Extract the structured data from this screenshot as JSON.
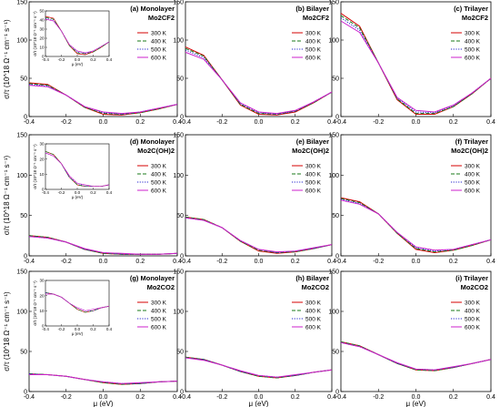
{
  "legend_labels": [
    "300 K",
    "400 K",
    "500 K",
    "600 K"
  ],
  "colors": {
    "300 K": "#d40000",
    "400 K": "#1a7a1a",
    "500 K": "#2222cc",
    "600 K": "#cc22cc"
  },
  "chart_data": [
    {
      "id": "a",
      "type": "line",
      "title_line1": "(a) Monolayer",
      "title_line2": "Mo2CF2",
      "xlim": [
        -0.4,
        0.4
      ],
      "ylim": [
        0,
        150
      ],
      "xticks": [
        "-0.4",
        "-0.2",
        "0.0",
        "0.2",
        "0.4"
      ],
      "yticks": [
        "0",
        "50",
        "100",
        "150"
      ],
      "ylabel": "σ/τ (10^18 Ω⁻¹ cm⁻¹ s⁻¹)",
      "xlabel": "",
      "x": [
        -0.4,
        -0.3,
        -0.2,
        -0.1,
        0.0,
        0.1,
        0.2,
        0.3,
        0.4
      ],
      "series": [
        {
          "name": "300 K",
          "values": [
            44,
            42,
            28,
            12,
            3,
            2,
            5,
            10,
            16
          ]
        },
        {
          "name": "400 K",
          "values": [
            43,
            41,
            28,
            12,
            4,
            3,
            5,
            10,
            16
          ]
        },
        {
          "name": "500 K",
          "values": [
            42,
            40,
            28,
            13,
            5,
            3,
            6,
            11,
            16
          ]
        },
        {
          "name": "600 K",
          "values": [
            41,
            39,
            28,
            13,
            6,
            4,
            6,
            11,
            16
          ]
        }
      ],
      "inset": {
        "xlim": [
          -0.4,
          0.4
        ],
        "ylim": [
          0,
          50
        ],
        "xticks": [
          "-0.4",
          "-0.2",
          "0.0",
          "0.2",
          "0.4"
        ],
        "yticks": [
          "0",
          "10",
          "20",
          "30",
          "40",
          "50"
        ],
        "xlabel": "μ (eV)",
        "ylabel": "σ/τ (10^18 Ω⁻¹ cm⁻¹ s⁻¹)"
      }
    },
    {
      "id": "b",
      "type": "line",
      "title_line1": "(b) Bilayer",
      "title_line2": "Mo2CF2",
      "xlim": [
        -0.4,
        0.4
      ],
      "ylim": [
        0,
        150
      ],
      "xticks": [
        "-0.4",
        "-0.2",
        "0.0",
        "0.2",
        "0.4"
      ],
      "yticks": [
        "0",
        "50",
        "100",
        "150"
      ],
      "ylabel": "",
      "xlabel": "",
      "x": [
        -0.4,
        -0.3,
        -0.2,
        -0.1,
        0.0,
        0.1,
        0.2,
        0.3,
        0.4
      ],
      "series": [
        {
          "name": "300 K",
          "values": [
            91,
            80,
            48,
            15,
            3,
            2,
            6,
            18,
            32
          ]
        },
        {
          "name": "400 K",
          "values": [
            89,
            79,
            48,
            16,
            4,
            3,
            7,
            18,
            32
          ]
        },
        {
          "name": "500 K",
          "values": [
            87,
            77,
            48,
            17,
            5,
            3,
            7,
            19,
            32
          ]
        },
        {
          "name": "600 K",
          "values": [
            84,
            75,
            48,
            18,
            6,
            4,
            8,
            19,
            32
          ]
        }
      ]
    },
    {
      "id": "c",
      "type": "line",
      "title_line1": "(c) Trilayer",
      "title_line2": "Mo2CF2",
      "xlim": [
        -0.4,
        0.4
      ],
      "ylim": [
        0,
        150
      ],
      "xticks": [
        "-0.4",
        "-0.2",
        "0.0",
        "0.2",
        "0.4"
      ],
      "yticks": [
        "0",
        "50",
        "100",
        "150"
      ],
      "ylabel": "",
      "xlabel": "",
      "x": [
        -0.4,
        -0.3,
        -0.2,
        -0.1,
        0.0,
        0.1,
        0.2,
        0.3,
        0.4
      ],
      "series": [
        {
          "name": "300 K",
          "values": [
            135,
            118,
            70,
            22,
            3,
            3,
            13,
            30,
            50
          ]
        },
        {
          "name": "400 K",
          "values": [
            132,
            116,
            70,
            23,
            4,
            4,
            13,
            30,
            50
          ]
        },
        {
          "name": "500 K",
          "values": [
            129,
            113,
            70,
            24,
            6,
            5,
            14,
            31,
            50
          ]
        },
        {
          "name": "600 K",
          "values": [
            125,
            110,
            70,
            25,
            8,
            6,
            15,
            31,
            50
          ]
        }
      ]
    },
    {
      "id": "d",
      "type": "line",
      "title_line1": "(d) Monolayer",
      "title_line2": "Mo2C(OH)2",
      "xlim": [
        -0.4,
        0.4
      ],
      "ylim": [
        0,
        150
      ],
      "xticks": [
        "-0.4",
        "-0.2",
        "0.0",
        "0.2",
        "0.4"
      ],
      "yticks": [
        "0",
        "50",
        "100",
        "150"
      ],
      "ylabel": "σ/τ (10^18 Ω⁻¹ cm⁻¹ s⁻¹)",
      "xlabel": "",
      "x": [
        -0.4,
        -0.3,
        -0.2,
        -0.1,
        0.0,
        0.1,
        0.2,
        0.3,
        0.4
      ],
      "series": [
        {
          "name": "300 K",
          "values": [
            25,
            23,
            17,
            8,
            3,
            2,
            2,
            2,
            3
          ]
        },
        {
          "name": "400 K",
          "values": [
            25,
            23,
            17,
            8,
            3,
            2,
            2,
            2,
            3
          ]
        },
        {
          "name": "500 K",
          "values": [
            24,
            22,
            17,
            8,
            4,
            2,
            2,
            2,
            3
          ]
        },
        {
          "name": "600 K",
          "values": [
            24,
            22,
            17,
            9,
            4,
            3,
            2,
            2,
            3
          ]
        }
      ],
      "inset": {
        "xlim": [
          -0.4,
          0.4
        ],
        "ylim": [
          0,
          30
        ],
        "xticks": [
          "-0.4",
          "-0.2",
          "0.0",
          "0.2",
          "0.4"
        ],
        "yticks": [
          "0",
          "10",
          "20",
          "30"
        ],
        "xlabel": "μ (eV)",
        "ylabel": "σ/τ (10^18 Ω⁻¹ cm⁻¹ s⁻¹)"
      }
    },
    {
      "id": "e",
      "type": "line",
      "title_line1": "(e) Bilayer",
      "title_line2": "Mo2C(OH)2",
      "xlim": [
        -0.4,
        0.4
      ],
      "ylim": [
        0,
        150
      ],
      "xticks": [
        "-0.4",
        "-0.2",
        "0.0",
        "0.2",
        "0.4"
      ],
      "yticks": [
        "0",
        "50",
        "100",
        "150"
      ],
      "ylabel": "",
      "xlabel": "",
      "x": [
        -0.4,
        -0.3,
        -0.2,
        -0.1,
        0.0,
        0.1,
        0.2,
        0.3,
        0.4
      ],
      "series": [
        {
          "name": "300 K",
          "values": [
            48,
            45,
            35,
            18,
            6,
            3,
            5,
            9,
            14
          ]
        },
        {
          "name": "400 K",
          "values": [
            48,
            45,
            35,
            18,
            7,
            4,
            5,
            9,
            14
          ]
        },
        {
          "name": "500 K",
          "values": [
            47,
            44,
            35,
            19,
            8,
            4,
            6,
            9,
            14
          ]
        },
        {
          "name": "600 K",
          "values": [
            47,
            44,
            35,
            19,
            8,
            5,
            6,
            10,
            14
          ]
        }
      ]
    },
    {
      "id": "f",
      "type": "line",
      "title_line1": "(f) Trilayer",
      "title_line2": "Mo2C(OH)2",
      "xlim": [
        -0.4,
        0.4
      ],
      "ylim": [
        0,
        150
      ],
      "xticks": [
        "-0.4",
        "-0.2",
        "0.0",
        "0.2",
        "0.4"
      ],
      "yticks": [
        "0",
        "50",
        "100",
        "150"
      ],
      "ylabel": "",
      "xlabel": "",
      "x": [
        -0.4,
        -0.3,
        -0.2,
        -0.1,
        0.0,
        0.1,
        0.2,
        0.3,
        0.4
      ],
      "series": [
        {
          "name": "300 K",
          "values": [
            72,
            67,
            52,
            28,
            8,
            4,
            7,
            13,
            20
          ]
        },
        {
          "name": "400 K",
          "values": [
            71,
            66,
            52,
            28,
            9,
            5,
            7,
            13,
            20
          ]
        },
        {
          "name": "500 K",
          "values": [
            70,
            65,
            52,
            29,
            10,
            6,
            8,
            14,
            20
          ]
        },
        {
          "name": "600 K",
          "values": [
            69,
            64,
            52,
            29,
            11,
            7,
            8,
            14,
            20
          ]
        }
      ]
    },
    {
      "id": "g",
      "type": "line",
      "title_line1": "(g) Monolayer",
      "title_line2": "Mo2CO2",
      "xlim": [
        -0.4,
        0.4
      ],
      "ylim": [
        0,
        150
      ],
      "xticks": [
        "-0.4",
        "-0.2",
        "0.0",
        "0.2",
        "0.4"
      ],
      "yticks": [
        "0",
        "50",
        "100",
        "150"
      ],
      "ylabel": "σ/τ (10^18 Ω⁻¹ cm⁻¹ s⁻¹)",
      "xlabel": "μ (eV)",
      "x": [
        -0.4,
        -0.3,
        -0.2,
        -0.1,
        0.0,
        0.1,
        0.2,
        0.3,
        0.4
      ],
      "series": [
        {
          "name": "300 K",
          "values": [
            22,
            21,
            19,
            15,
            11,
            9,
            10,
            12,
            13
          ]
        },
        {
          "name": "400 K",
          "values": [
            22,
            21,
            19,
            15,
            11,
            9,
            10,
            12,
            13
          ]
        },
        {
          "name": "500 K",
          "values": [
            22,
            21,
            19,
            15,
            12,
            10,
            10,
            12,
            13
          ]
        },
        {
          "name": "600 K",
          "values": [
            21,
            21,
            19,
            15,
            12,
            10,
            11,
            12,
            13
          ]
        }
      ],
      "inset": {
        "xlim": [
          -0.4,
          0.4
        ],
        "ylim": [
          0,
          30
        ],
        "xticks": [
          "-0.4",
          "-0.2",
          "0.0",
          "0.2",
          "0.4"
        ],
        "yticks": [
          "0",
          "10",
          "20",
          "30"
        ],
        "xlabel": "μ (eV)",
        "ylabel": "σ/τ (10^18 Ω⁻¹ cm⁻¹ s⁻¹)"
      }
    },
    {
      "id": "h",
      "type": "line",
      "title_line1": "(h) Bilayer",
      "title_line2": "Mo2CO2",
      "xlim": [
        -0.4,
        0.4
      ],
      "ylim": [
        0,
        150
      ],
      "xticks": [
        "-0.4",
        "-0.2",
        "0.0",
        "0.2",
        "0.4"
      ],
      "yticks": [
        "0",
        "50",
        "100",
        "150"
      ],
      "ylabel": "",
      "xlabel": "μ (eV)",
      "x": [
        -0.4,
        -0.3,
        -0.2,
        -0.1,
        0.0,
        0.1,
        0.2,
        0.3,
        0.4
      ],
      "series": [
        {
          "name": "300 K",
          "values": [
            43,
            40,
            33,
            25,
            19,
            17,
            20,
            24,
            27
          ]
        },
        {
          "name": "400 K",
          "values": [
            43,
            40,
            33,
            25,
            19,
            17,
            20,
            24,
            27
          ]
        },
        {
          "name": "500 K",
          "values": [
            42,
            40,
            33,
            25,
            20,
            18,
            20,
            24,
            27
          ]
        },
        {
          "name": "600 K",
          "values": [
            42,
            39,
            33,
            26,
            20,
            18,
            21,
            24,
            27
          ]
        }
      ]
    },
    {
      "id": "i",
      "type": "line",
      "title_line1": "(i) Trilayer",
      "title_line2": "Mo2CO2",
      "xlim": [
        -0.4,
        0.4
      ],
      "ylim": [
        0,
        150
      ],
      "xticks": [
        "-0.4",
        "-0.2",
        "0.0",
        "0.2",
        "0.4"
      ],
      "yticks": [
        "0",
        "50",
        "100",
        "150"
      ],
      "ylabel": "",
      "xlabel": "μ (eV)",
      "x": [
        -0.4,
        -0.3,
        -0.2,
        -0.1,
        0.0,
        0.1,
        0.2,
        0.3,
        0.4
      ],
      "series": [
        {
          "name": "300 K",
          "values": [
            62,
            57,
            46,
            35,
            27,
            26,
            30,
            35,
            40
          ]
        },
        {
          "name": "400 K",
          "values": [
            62,
            57,
            46,
            35,
            27,
            26,
            30,
            35,
            40
          ]
        },
        {
          "name": "500 K",
          "values": [
            61,
            56,
            46,
            35,
            28,
            27,
            30,
            35,
            40
          ]
        },
        {
          "name": "600 K",
          "values": [
            61,
            56,
            46,
            36,
            28,
            27,
            31,
            35,
            40
          ]
        }
      ]
    }
  ]
}
